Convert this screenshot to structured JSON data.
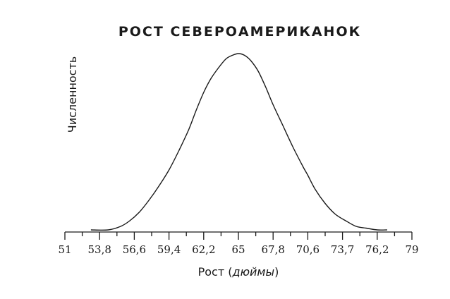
{
  "chart_data": {
    "type": "line",
    "title": "РОСТ СЕВЕРОАМЕРИКАНОК",
    "xlabel_plain": "Рост (",
    "xlabel_italic": "дюймы",
    "xlabel_close": ")",
    "ylabel": "Численность",
    "tick_labels": [
      "51",
      "53,8",
      "56,6",
      "59,4",
      "62,2",
      "65",
      "67,8",
      "70,6",
      "73,7",
      "76,2",
      "79"
    ],
    "xlim": [
      51,
      79
    ],
    "ylim": [
      0,
      1
    ],
    "grid": false,
    "series": [
      {
        "x": [
          53.1,
          54.5,
          55.5,
          56.2,
          57.0,
          57.8,
          58.6,
          59.4,
          60.2,
          61.0,
          61.6,
          62.2,
          62.8,
          63.4,
          64.0,
          64.5,
          65.0,
          65.5,
          66.0,
          66.6,
          67.2,
          67.8,
          68.6,
          69.4,
          70.2,
          70.6,
          71.2,
          72.0,
          72.8,
          73.7,
          74.5,
          75.3,
          76.2,
          77.0
        ],
        "y": [
          0.0,
          0.0,
          0.02,
          0.05,
          0.1,
          0.17,
          0.25,
          0.34,
          0.45,
          0.57,
          0.68,
          0.78,
          0.86,
          0.92,
          0.97,
          0.99,
          1.0,
          0.99,
          0.96,
          0.9,
          0.81,
          0.71,
          0.59,
          0.47,
          0.36,
          0.31,
          0.23,
          0.15,
          0.09,
          0.05,
          0.02,
          0.01,
          0.0,
          0.0
        ]
      }
    ]
  }
}
